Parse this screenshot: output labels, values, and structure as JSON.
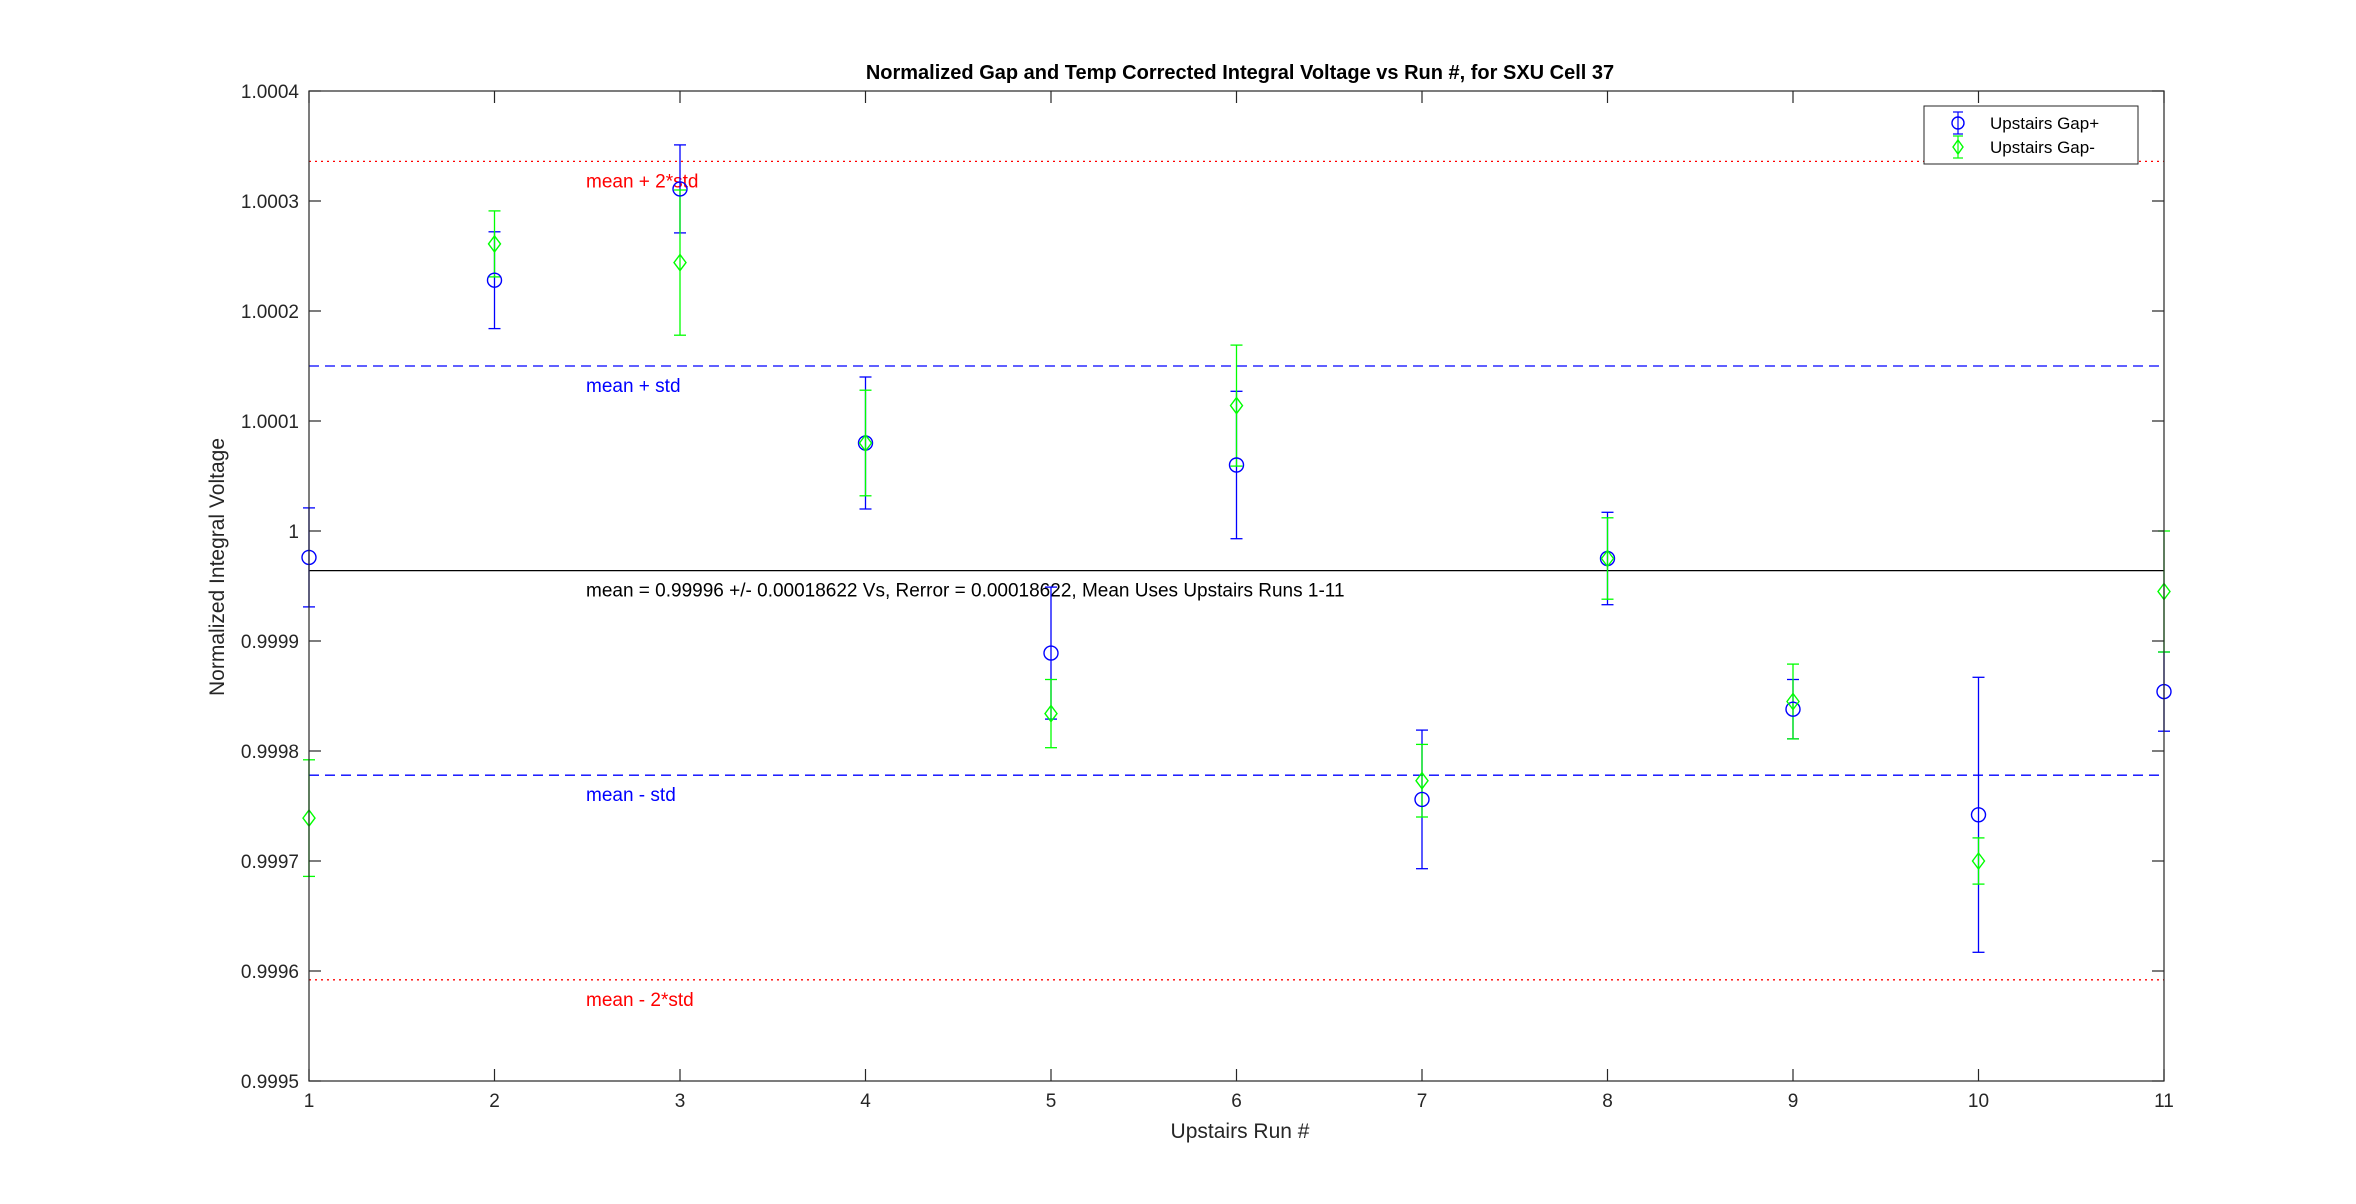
{
  "chart_data": {
    "type": "scatter",
    "title": "Normalized Gap and Temp Corrected Integral Voltage vs Run #, for SXU Cell 37",
    "xlabel": "Upstairs Run #",
    "ylabel": "Normalized Integral Voltage",
    "xlim": [
      1,
      11
    ],
    "ylim": [
      0.9995,
      1.0004
    ],
    "x_ticks": [
      1,
      2,
      3,
      4,
      5,
      6,
      7,
      8,
      9,
      10,
      11
    ],
    "x_tick_labels": [
      "1",
      "2",
      "3",
      "4",
      "5",
      "6",
      "7",
      "8",
      "9",
      "10",
      "11"
    ],
    "y_ticks": [
      0.9995,
      0.9996,
      0.9997,
      0.9998,
      0.9999,
      1.0,
      1.0001,
      1.0002,
      1.0003,
      1.0004
    ],
    "y_tick_labels": [
      "0.9995",
      "0.9996",
      "0.9997",
      "0.9998",
      "0.9999",
      "1",
      "1.0001",
      "1.0002",
      "1.0003",
      "1.0004"
    ],
    "grid": false,
    "legend_position": "top-right",
    "series": [
      {
        "name": "Upstairs Gap+",
        "color": "#0000ff",
        "marker": "circle",
        "x": [
          1,
          2,
          3,
          4,
          5,
          6,
          7,
          8,
          9,
          10,
          11
        ],
        "y": [
          0.999976,
          1.000228,
          1.000311,
          1.00008,
          0.999889,
          1.00006,
          0.999756,
          0.999975,
          0.999838,
          0.999742,
          0.999854
        ],
        "err": [
          4.5e-05,
          4.4e-05,
          4e-05,
          6e-05,
          6e-05,
          6.7e-05,
          6.3e-05,
          4.2e-05,
          2.7e-05,
          0.000125,
          3.6e-05
        ]
      },
      {
        "name": "Upstairs Gap-",
        "color": "#00ff00",
        "marker": "diamond",
        "x": [
          1,
          2,
          3,
          4,
          5,
          6,
          7,
          8,
          9,
          10,
          11
        ],
        "y": [
          0.999739,
          1.000261,
          1.000244,
          1.00008,
          0.999834,
          1.000114,
          0.999773,
          0.999975,
          0.999845,
          0.9997,
          0.999945
        ],
        "err": [
          5.3e-05,
          3e-05,
          6.6e-05,
          4.8e-05,
          3.1e-05,
          5.5e-05,
          3.3e-05,
          3.7e-05,
          3.4e-05,
          2.1e-05,
          5.5e-05
        ]
      }
    ],
    "reference_lines": [
      {
        "y": 1.000336,
        "style": "dotted",
        "color": "#ff0000",
        "label": "mean + 2*std",
        "label_color": "#ff0000"
      },
      {
        "y": 1.00015,
        "style": "dashed",
        "color": "#0000ff",
        "label": "mean + std",
        "label_color": "#0000ff"
      },
      {
        "y": 0.999964,
        "style": "solid",
        "color": "#000000",
        "label": "mean = 0.99996 +/- 0.00018622 Vs, Rerror = 0.00018622, Mean Uses Upstairs Runs 1-11",
        "label_color": "#000000"
      },
      {
        "y": 0.999778,
        "style": "dashed",
        "color": "#0000ff",
        "label": "mean - std",
        "label_color": "#0000ff"
      },
      {
        "y": 0.999592,
        "style": "dotted",
        "color": "#ff0000",
        "label": "mean - 2*std",
        "label_color": "#ff0000"
      }
    ]
  }
}
